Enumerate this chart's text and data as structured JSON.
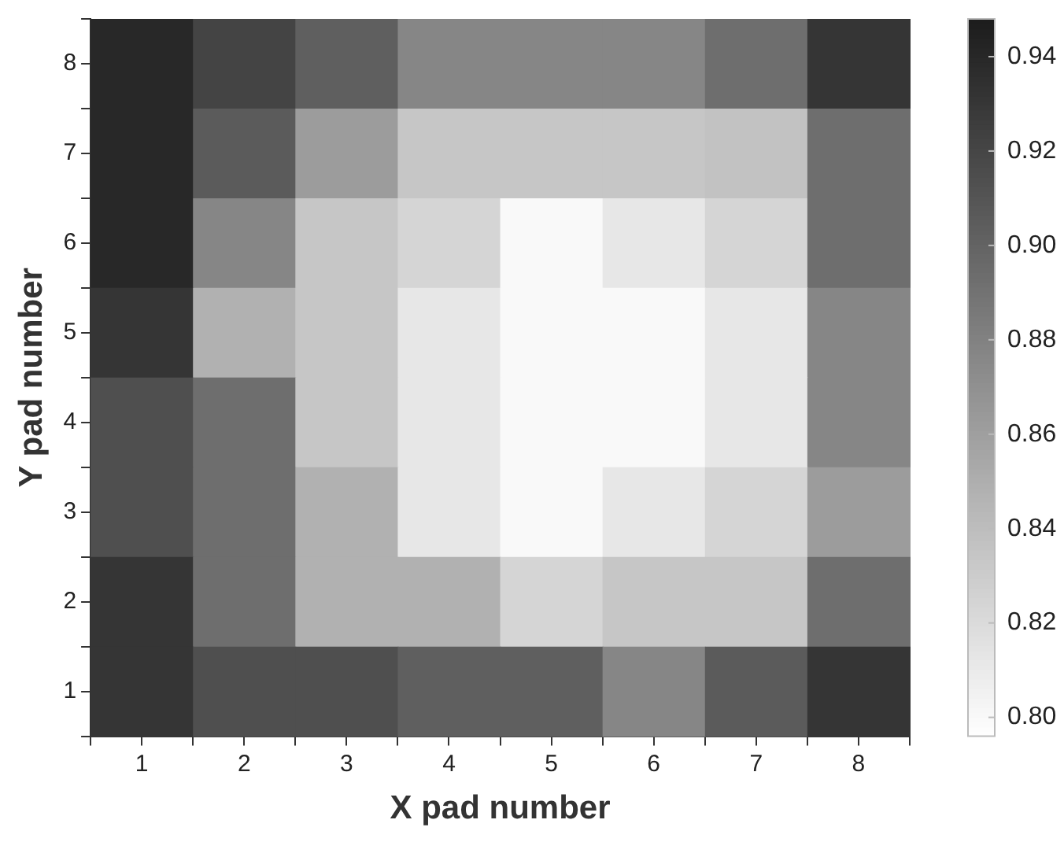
{
  "chart_data": {
    "type": "heatmap",
    "xlabel": "X pad number",
    "ylabel": "Y pad number",
    "categories": [
      "1",
      "2",
      "3",
      "4",
      "5",
      "6",
      "7",
      "8"
    ],
    "y_categories": [
      "8",
      "7",
      "6",
      "5",
      "4",
      "3",
      "2",
      "1"
    ],
    "cells": [
      [
        0.94,
        0.921,
        0.903,
        0.877,
        0.877,
        0.877,
        0.893,
        0.931
      ],
      [
        0.94,
        0.906,
        0.862,
        0.834,
        0.834,
        0.834,
        0.837,
        0.893
      ],
      [
        0.94,
        0.877,
        0.834,
        0.824,
        0.8,
        0.812,
        0.824,
        0.893
      ],
      [
        0.931,
        0.848,
        0.834,
        0.812,
        0.8,
        0.8,
        0.812,
        0.877
      ],
      [
        0.914,
        0.893,
        0.834,
        0.812,
        0.8,
        0.8,
        0.812,
        0.877
      ],
      [
        0.914,
        0.893,
        0.848,
        0.812,
        0.8,
        0.812,
        0.824,
        0.862
      ],
      [
        0.931,
        0.893,
        0.848,
        0.848,
        0.824,
        0.834,
        0.834,
        0.893
      ],
      [
        0.931,
        0.914,
        0.914,
        0.903,
        0.903,
        0.877,
        0.906,
        0.931
      ]
    ],
    "clim": [
      0.796,
      0.948
    ],
    "cticks": [
      {
        "value": 0.8,
        "label": "0.80"
      },
      0.82,
      0.84,
      0.86,
      0.88,
      {
        "value": 0.9,
        "label": "0.90"
      },
      0.92,
      0.94
    ]
  }
}
